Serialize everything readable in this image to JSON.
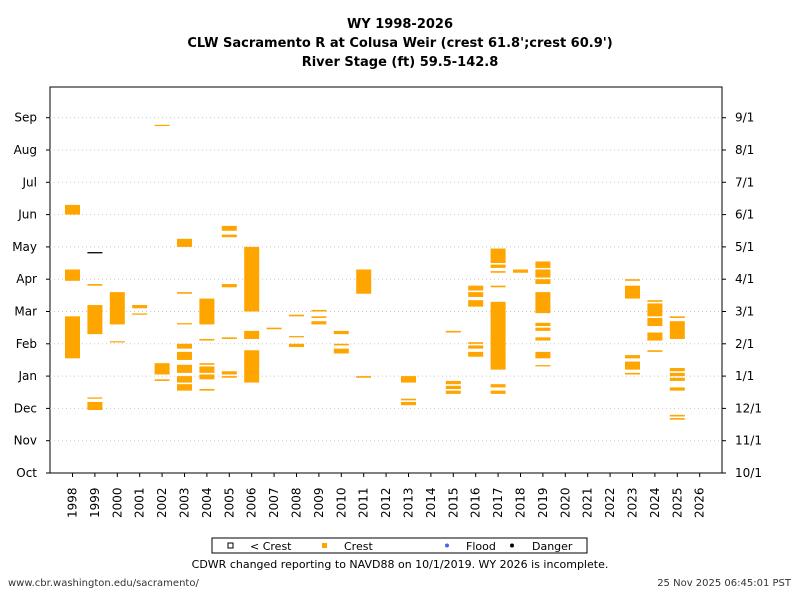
{
  "chart_data": {
    "type": "timeline",
    "title_lines": [
      "WY 1998-2026",
      "CLW Sacramento R at Colusa Weir (crest 61.8';crest 60.9')",
      "River Stage (ft) 59.5-142.8"
    ],
    "x_categories": [
      "1998",
      "1999",
      "2000",
      "2001",
      "2002",
      "2003",
      "2004",
      "2005",
      "2006",
      "2007",
      "2008",
      "2009",
      "2010",
      "2011",
      "2012",
      "2013",
      "2014",
      "2015",
      "2016",
      "2017",
      "2018",
      "2019",
      "2020",
      "2021",
      "2022",
      "2023",
      "2024",
      "2025",
      "2026"
    ],
    "y_left_ticks": [
      "Oct",
      "Nov",
      "Dec",
      "Jan",
      "Feb",
      "Mar",
      "Apr",
      "May",
      "Jun",
      "Jul",
      "Aug",
      "Sep"
    ],
    "y_right_ticks": [
      "10/1",
      "11/1",
      "12/1",
      "1/1",
      "2/1",
      "3/1",
      "4/1",
      "5/1",
      "6/1",
      "7/1",
      "8/1",
      "9/1"
    ],
    "y_range_months": [
      0,
      11.6
    ],
    "grid": true,
    "legend": [
      {
        "label": "< Crest",
        "color": "#000000",
        "marker": "open-square"
      },
      {
        "label": "Crest",
        "color": "#FFA500",
        "marker": "square"
      },
      {
        "label": "Flood",
        "color": "#4169E1",
        "marker": "dot"
      },
      {
        "label": "Danger",
        "color": "#000000",
        "marker": "dot"
      }
    ],
    "legend_position": "bottom-center",
    "series": [
      {
        "year": "1998",
        "status": "Crest",
        "ranges": [
          [
            3.55,
            4.85
          ],
          [
            5.95,
            6.3
          ],
          [
            8.0,
            8.3
          ]
        ]
      },
      {
        "year": "1999",
        "status": "Crest",
        "ranges": [
          [
            1.95,
            2.2
          ],
          [
            2.3,
            2.34
          ],
          [
            4.3,
            5.2
          ],
          [
            5.8,
            5.85
          ]
        ]
      },
      {
        "year": "1999",
        "status": "Danger",
        "ranges": [
          [
            6.8,
            6.84
          ]
        ]
      },
      {
        "year": "2000",
        "status": "Crest",
        "ranges": [
          [
            4.05,
            4.08
          ],
          [
            4.6,
            5.6
          ]
        ]
      },
      {
        "year": "2001",
        "status": "Crest",
        "ranges": [
          [
            4.9,
            4.94
          ],
          [
            5.1,
            5.2
          ]
        ]
      },
      {
        "year": "2002",
        "status": "Crest",
        "ranges": [
          [
            2.85,
            2.9
          ],
          [
            3.05,
            3.4
          ],
          [
            10.75,
            10.78
          ]
        ]
      },
      {
        "year": "2003",
        "status": "Crest",
        "ranges": [
          [
            2.55,
            2.75
          ],
          [
            2.8,
            3.0
          ],
          [
            3.1,
            3.35
          ],
          [
            3.5,
            3.75
          ],
          [
            3.85,
            4.0
          ],
          [
            4.6,
            4.64
          ],
          [
            5.55,
            5.6
          ],
          [
            7.0,
            7.25
          ]
        ]
      },
      {
        "year": "2004",
        "status": "Crest",
        "ranges": [
          [
            2.55,
            2.6
          ],
          [
            2.9,
            3.05
          ],
          [
            3.1,
            3.3
          ],
          [
            3.35,
            3.4
          ],
          [
            4.1,
            4.15
          ],
          [
            4.6,
            5.4
          ]
        ]
      },
      {
        "year": "2005",
        "status": "Crest",
        "ranges": [
          [
            2.95,
            3.0
          ],
          [
            3.05,
            3.15
          ],
          [
            4.15,
            4.2
          ],
          [
            5.75,
            5.85
          ],
          [
            7.3,
            7.38
          ],
          [
            7.5,
            7.65
          ]
        ]
      },
      {
        "year": "2006",
        "status": "Crest",
        "ranges": [
          [
            2.8,
            3.8
          ],
          [
            4.15,
            4.4
          ],
          [
            5.0,
            7.0
          ]
        ]
      },
      {
        "year": "2007",
        "status": "Crest",
        "ranges": [
          [
            4.45,
            4.5
          ]
        ]
      },
      {
        "year": "2008",
        "status": "Crest",
        "ranges": [
          [
            3.9,
            4.0
          ],
          [
            4.2,
            4.24
          ],
          [
            4.85,
            4.9
          ]
        ]
      },
      {
        "year": "2009",
        "status": "Crest",
        "ranges": [
          [
            4.6,
            4.7
          ],
          [
            4.8,
            4.85
          ],
          [
            5.0,
            5.05
          ]
        ]
      },
      {
        "year": "2010",
        "status": "Crest",
        "ranges": [
          [
            3.7,
            3.85
          ],
          [
            3.95,
            4.0
          ],
          [
            4.3,
            4.4
          ]
        ]
      },
      {
        "year": "2011",
        "status": "Crest",
        "ranges": [
          [
            2.95,
            3.0
          ],
          [
            5.55,
            6.3
          ]
        ]
      },
      {
        "year": "2013",
        "status": "Crest",
        "ranges": [
          [
            2.1,
            2.2
          ],
          [
            2.25,
            2.3
          ],
          [
            2.8,
            3.0
          ]
        ]
      },
      {
        "year": "2015",
        "status": "Crest",
        "ranges": [
          [
            2.45,
            2.55
          ],
          [
            2.6,
            2.7
          ],
          [
            2.75,
            2.85
          ],
          [
            4.35,
            4.4
          ]
        ]
      },
      {
        "year": "2016",
        "status": "Crest",
        "ranges": [
          [
            3.6,
            3.75
          ],
          [
            3.85,
            3.95
          ],
          [
            4.0,
            4.05
          ],
          [
            5.15,
            5.35
          ],
          [
            5.45,
            5.6
          ],
          [
            5.65,
            5.8
          ]
        ]
      },
      {
        "year": "2017",
        "status": "Crest",
        "ranges": [
          [
            2.45,
            2.55
          ],
          [
            2.65,
            2.75
          ],
          [
            3.2,
            5.3
          ],
          [
            5.75,
            5.8
          ],
          [
            6.2,
            6.25
          ],
          [
            6.35,
            6.45
          ],
          [
            6.5,
            6.95
          ]
        ]
      },
      {
        "year": "2018",
        "status": "Crest",
        "ranges": [
          [
            6.2,
            6.3
          ]
        ]
      },
      {
        "year": "2019",
        "status": "Crest",
        "ranges": [
          [
            3.3,
            3.34
          ],
          [
            3.55,
            3.75
          ],
          [
            4.1,
            4.2
          ],
          [
            4.4,
            4.5
          ],
          [
            4.55,
            4.65
          ],
          [
            4.95,
            5.6
          ],
          [
            5.85,
            6.0
          ],
          [
            6.05,
            6.3
          ],
          [
            6.35,
            6.55
          ]
        ]
      },
      {
        "year": "2023",
        "status": "Crest",
        "ranges": [
          [
            3.05,
            3.1
          ],
          [
            3.2,
            3.45
          ],
          [
            3.55,
            3.65
          ],
          [
            5.4,
            5.8
          ],
          [
            5.95,
            6.0
          ]
        ]
      },
      {
        "year": "2024",
        "status": "Crest",
        "ranges": [
          [
            3.75,
            3.8
          ],
          [
            4.1,
            4.35
          ],
          [
            4.55,
            4.8
          ],
          [
            4.85,
            5.25
          ],
          [
            5.3,
            5.35
          ]
        ]
      },
      {
        "year": "2025",
        "status": "Crest",
        "ranges": [
          [
            1.65,
            1.7
          ],
          [
            1.75,
            1.8
          ],
          [
            2.55,
            2.65
          ],
          [
            2.85,
            2.95
          ],
          [
            3.0,
            3.1
          ],
          [
            3.15,
            3.25
          ],
          [
            4.15,
            4.7
          ],
          [
            4.8,
            4.85
          ]
        ]
      }
    ]
  },
  "legend_labels": {
    "below_crest": "< Crest",
    "crest": "Crest",
    "flood": "Flood",
    "danger": "Danger"
  },
  "footer": {
    "note": "CDWR changed reporting to NAVD88 on 10/1/2019. WY 2026 is incomplete.",
    "url": "www.cbr.washington.edu/sacramento/",
    "timestamp": "25 Nov 2025 06:45:01 PST"
  }
}
